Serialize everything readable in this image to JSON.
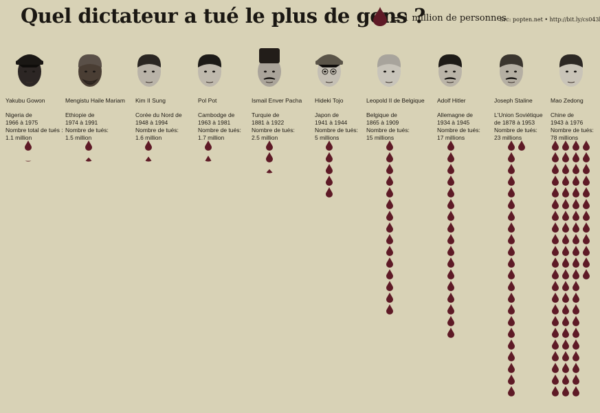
{
  "title": "Quel dictateur a tué le plus de gens ?",
  "legend": {
    "equals": "=",
    "label": "1 million de personnes"
  },
  "source": "Src: popten.net  •  http://bit.ly/cs043b",
  "colors": {
    "background": "#d8d2b6",
    "drop": "#5e1a26"
  },
  "chart_data": {
    "type": "pictogram",
    "unit": "1 million de personnes",
    "categories": [
      "Yakubu Gowon",
      "Mengistu Haile Mariam",
      "Kim II Sung",
      "Pol Pot",
      "Ismail Enver Pacha",
      "Hideki Tojo",
      "Leopold II de Belgique",
      "Adolf Hitler",
      "Joseph Staline",
      "Mao Zedong"
    ],
    "values": [
      1.1,
      1.5,
      1.6,
      1.7,
      2.5,
      5,
      15,
      17,
      23,
      78
    ]
  },
  "dictators": [
    {
      "name": "Yakubu Gowon",
      "country": "Nigeria de",
      "period": "1966 à 1975",
      "kills_label": "Nombre total de tués :",
      "kills": "1.1 million",
      "value": 1.1
    },
    {
      "name": "Mengistu Haile Mariam",
      "country": "Ethiopie de",
      "period": "1974 à 1991",
      "kills_label": "Nombre de tués:",
      "kills": "1.5 million",
      "value": 1.5
    },
    {
      "name": "Kim II Sung",
      "country": "Corée du Nord de",
      "period": "1948 à 1994",
      "kills_label": "Nombre de tués:",
      "kills": "1.6 million",
      "value": 1.6
    },
    {
      "name": "Pol Pot",
      "country": "Cambodge de",
      "period": "1963 à 1981",
      "kills_label": "Nombre de tués:",
      "kills": "1.7 million",
      "value": 1.7
    },
    {
      "name": "Ismail Enver Pacha",
      "country": "Turquie de",
      "period": "1881 à 1922",
      "kills_label": "Nombre de tués:",
      "kills": "2.5 million",
      "value": 2.5
    },
    {
      "name": "Hideki Tojo",
      "country": "Japon de",
      "period": "1941 à 1944",
      "kills_label": "Nombre de tués:",
      "kills": "5 millions",
      "value": 5
    },
    {
      "name": "Leopold II de Belgique",
      "country": "Belgique de",
      "period": "1865 à 1909",
      "kills_label": "Nombre de tués:",
      "kills": "15 millions",
      "value": 15
    },
    {
      "name": "Adolf Hitler",
      "country": "Allemagne de",
      "period": "1934 à 1945",
      "kills_label": "Nombre de tués:",
      "kills": "17 millions",
      "value": 17
    },
    {
      "name": "Joseph Staline",
      "country": "L'Union Soviétique",
      "period": "de 1878 à 1953",
      "kills_label": "Nombre de tués:",
      "kills": "23 millions",
      "value": 23
    },
    {
      "name": "Mao Zedong",
      "country": "Chine de",
      "period": "1943 à 1976",
      "kills_label": "Nombre de tués:",
      "kills": "78 millions",
      "value": 78
    }
  ]
}
